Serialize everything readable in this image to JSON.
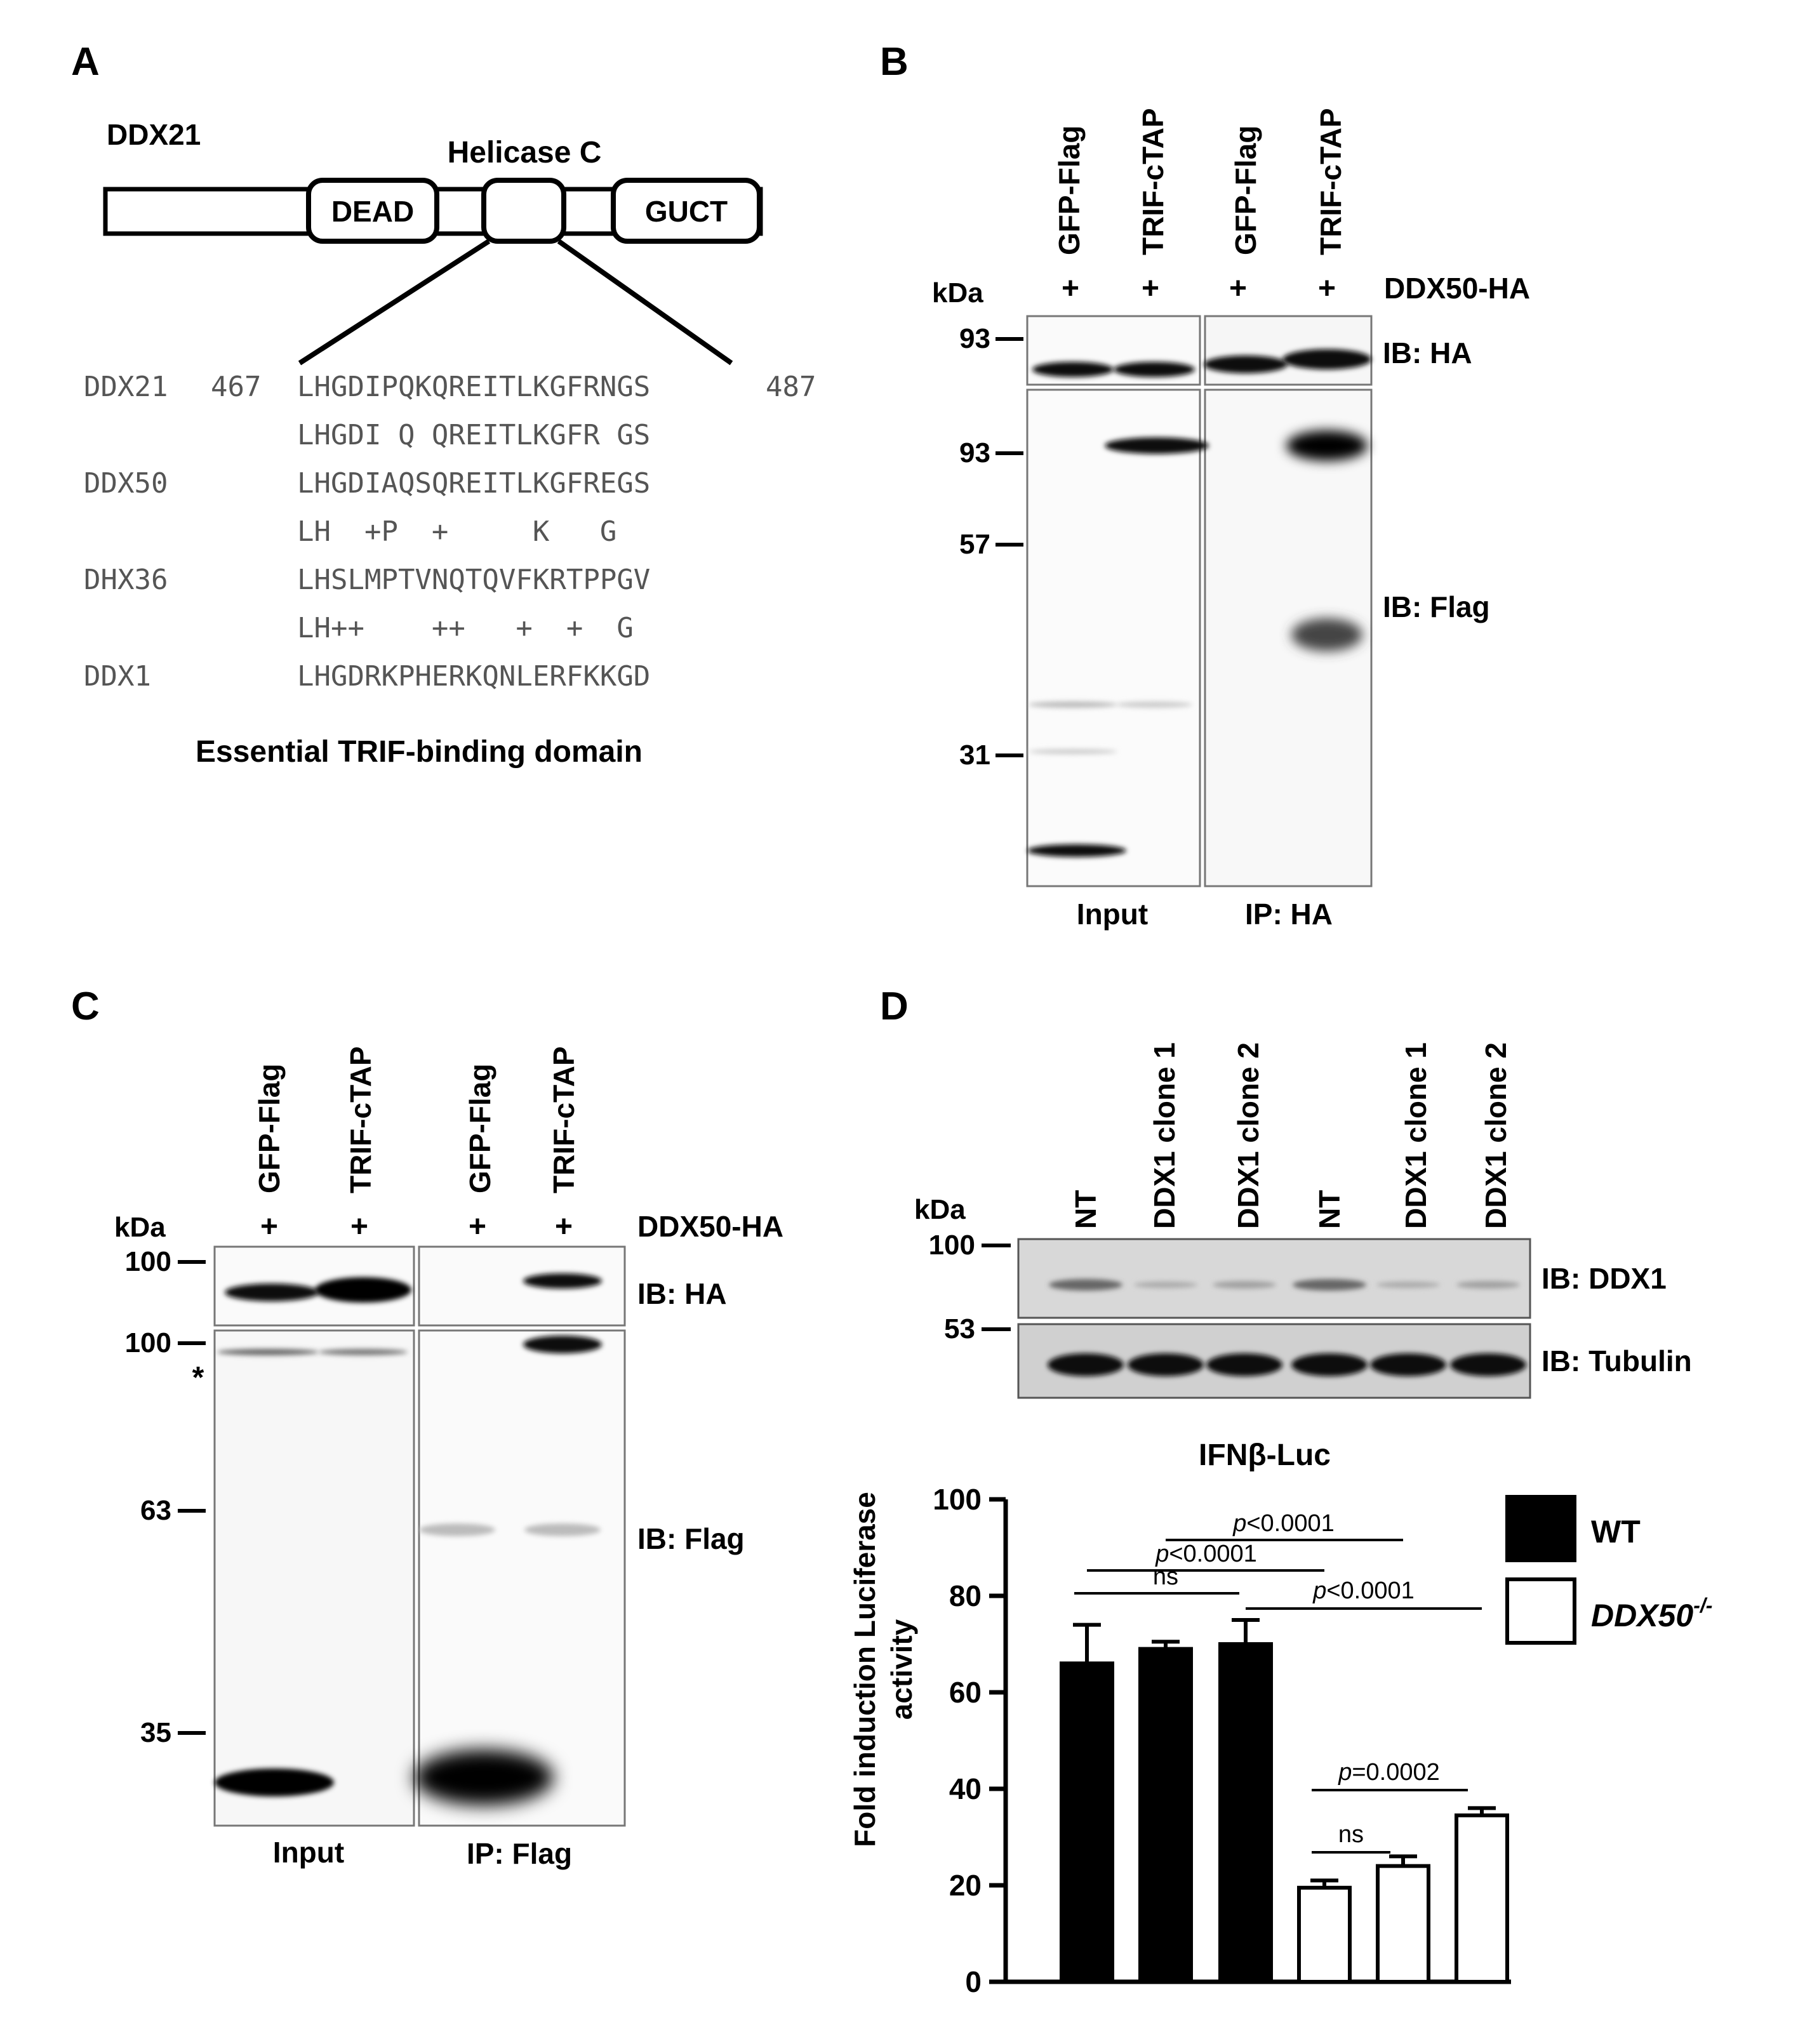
{
  "panel_a": {
    "letter": "A",
    "protein": "DDX21",
    "domains": {
      "dead": "DEAD",
      "helicase": "Helicase C",
      "guct": "GUCT"
    },
    "alignment": [
      {
        "label": "DDX21",
        "start": "467",
        "seq": "LHGDIPQKQREITLKGFRNGS",
        "end": "487"
      },
      {
        "label": "",
        "start": "",
        "seq": "LHGDI Q QREITLKGFR GS",
        "end": ""
      },
      {
        "label": "DDX50",
        "start": "",
        "seq": "LHGDIAQSQREITLKGFREGS",
        "end": ""
      },
      {
        "label": "",
        "start": "",
        "seq": "LH  +P  +     K   G",
        "end": ""
      },
      {
        "label": "DHX36",
        "start": "",
        "seq": "LHSLMPTVNQTQVFKRTPPGV",
        "end": ""
      },
      {
        "label": "",
        "start": "",
        "seq": "LH++    ++   +  +  G",
        "end": ""
      },
      {
        "label": "DDX1",
        "start": "",
        "seq": "LHGDRKPHERKQNLERFKKGD",
        "end": ""
      }
    ],
    "caption": "Essential TRIF-binding domain"
  },
  "panel_b": {
    "letter": "B",
    "lanes": [
      "GFP-Flag",
      "TRIF-cTAP",
      "GFP-Flag",
      "TRIF-cTAP"
    ],
    "plus": [
      "+",
      "+",
      "+",
      "+"
    ],
    "kda": "kDa",
    "construct": "DDX50-HA",
    "markers_top": [
      "93"
    ],
    "markers_bottom": [
      "93",
      "57",
      "31"
    ],
    "ib_top": "IB: HA",
    "ib_bottom": "IB: Flag",
    "groups": [
      "Input",
      "IP: HA"
    ]
  },
  "panel_c": {
    "letter": "C",
    "lanes": [
      "GFP-Flag",
      "TRIF-cTAP",
      "GFP-Flag",
      "TRIF-cTAP"
    ],
    "plus": [
      "+",
      "+",
      "+",
      "+"
    ],
    "kda": "kDa",
    "construct": "DDX50-HA",
    "markers_top": [
      "100"
    ],
    "markers_bottom": [
      "100",
      "63",
      "35"
    ],
    "asterisk": "*",
    "ib_top": "IB: HA",
    "ib_bottom": "IB: Flag",
    "groups": [
      "Input",
      "IP: Flag"
    ]
  },
  "panel_d": {
    "letter": "D",
    "lanes": [
      "NT",
      "DDX1 clone 1",
      "DDX1 clone 2",
      "NT",
      "DDX1 clone 1",
      "DDX1 clone 2"
    ],
    "kda": "kDa",
    "markers": [
      "100",
      "53"
    ],
    "ib_top": "IB: DDX1",
    "ib_bottom": "IB: Tubulin"
  },
  "chart_data": {
    "type": "bar",
    "title": "IFNβ-Luc",
    "ylabel": "Fold induction Luciferase activity",
    "ylabel_lines": [
      "Fold induction Luciferase",
      "activity"
    ],
    "xlabel": "",
    "ylim": [
      0,
      100
    ],
    "yticks": [
      0,
      20,
      40,
      60,
      80,
      100
    ],
    "legend": [
      {
        "name": "WT",
        "fill": "#000000"
      },
      {
        "name": "DDX50",
        "superscript": "-/-",
        "fill": "#ffffff"
      }
    ],
    "series": [
      {
        "name": "WT",
        "values": [
          66,
          69,
          70
        ],
        "errors": [
          8,
          1.5,
          5
        ]
      },
      {
        "name": "DDX50-/-",
        "values": [
          19.5,
          24,
          34.5
        ],
        "errors": [
          1.5,
          2,
          1.5
        ]
      }
    ],
    "annotations": [
      {
        "text": "ns",
        "italic_p": false
      },
      {
        "text": "=0.0002",
        "italic_p": true
      },
      {
        "text": "<0.0001",
        "italic_p": true
      },
      {
        "text": "<0.0001",
        "italic_p": true
      },
      {
        "text": "<0.0001",
        "italic_p": true
      }
    ],
    "ns_label": "ns",
    "ns_label_ko": "ns",
    "p_letter": "p"
  }
}
